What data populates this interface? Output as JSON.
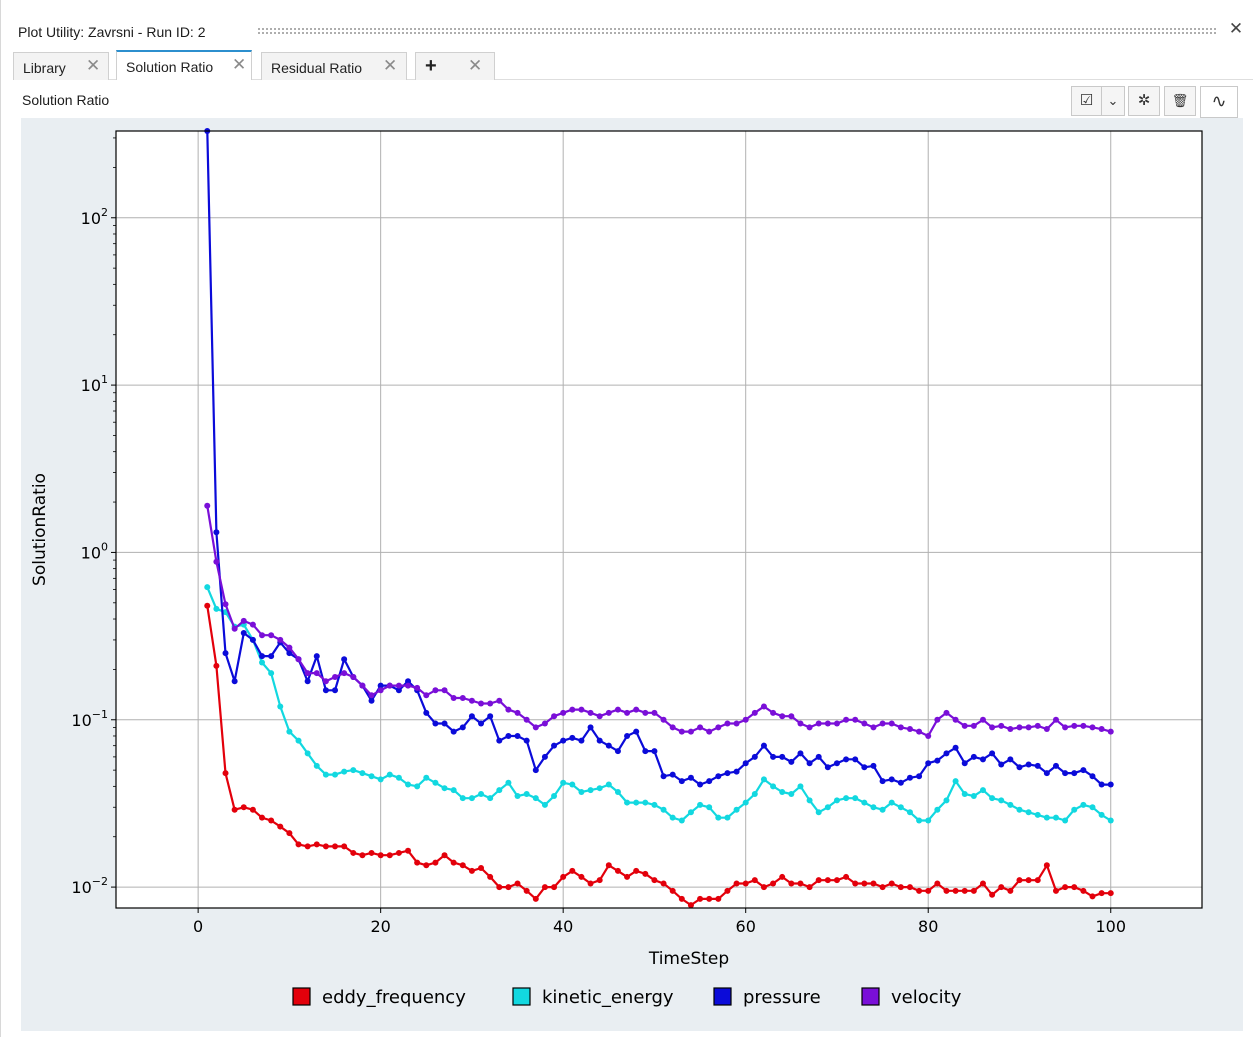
{
  "window": {
    "title": "Plot Utility: Zavrsni - Run ID: 2",
    "close_glyph": "✕"
  },
  "tabs": [
    {
      "label": "Library",
      "active": false,
      "close_glyph": "✕"
    },
    {
      "label": "Solution Ratio",
      "active": true,
      "close_glyph": "✕"
    },
    {
      "label": "Residual Ratio",
      "active": false,
      "close_glyph": "✕"
    },
    {
      "label": "+",
      "active": false,
      "close_glyph": "✕"
    }
  ],
  "panel": {
    "title": "Solution Ratio"
  },
  "toolbar": {
    "buttons": [
      {
        "icon": "checkbox-dropdown-icon",
        "glyph": "☑"
      },
      {
        "icon": "chevron-down-icon",
        "glyph": "⌄"
      },
      {
        "icon": "gear-icon",
        "glyph": "✲"
      },
      {
        "icon": "trash-icon",
        "glyph": "🗑"
      },
      {
        "icon": "curve-icon",
        "glyph": "∿"
      }
    ]
  },
  "colors": {
    "eddy_frequency": "#e3000b",
    "kinetic_energy": "#12d8e0",
    "pressure": "#0b0bd9",
    "velocity": "#7a0fd8",
    "plot_bg": "#e9eef2",
    "tab_accent": "#2c8fce"
  },
  "chart_data": {
    "type": "line",
    "title": "",
    "xlabel": "TimeStep",
    "ylabel": "SolutionRatio",
    "xlim": [
      -9,
      110
    ],
    "ylim": [
      0.0075,
      330
    ],
    "yscale": "log",
    "grid": true,
    "legend_position": "bottom",
    "xticks": [
      0,
      20,
      40,
      60,
      80,
      100
    ],
    "xtick_labels": [
      "0",
      "20",
      "40",
      "60",
      "80",
      "100"
    ],
    "yticks": [
      0.01,
      0.1,
      1,
      10,
      100
    ],
    "ytick_labels": [
      {
        "base": "10",
        "exp": "−2"
      },
      {
        "base": "10",
        "exp": "−1"
      },
      {
        "base": "10",
        "exp": "0"
      },
      {
        "base": "10",
        "exp": "1"
      },
      {
        "base": "10",
        "exp": "2"
      }
    ],
    "x": [
      1,
      2,
      3,
      4,
      5,
      6,
      7,
      8,
      9,
      10,
      11,
      12,
      13,
      14,
      15,
      16,
      17,
      18,
      19,
      20,
      21,
      22,
      23,
      24,
      25,
      26,
      27,
      28,
      29,
      30,
      31,
      32,
      33,
      34,
      35,
      36,
      37,
      38,
      39,
      40,
      41,
      42,
      43,
      44,
      45,
      46,
      47,
      48,
      49,
      50,
      51,
      52,
      53,
      54,
      55,
      56,
      57,
      58,
      59,
      60,
      61,
      62,
      63,
      64,
      65,
      66,
      67,
      68,
      69,
      70,
      71,
      72,
      73,
      74,
      75,
      76,
      77,
      78,
      79,
      80,
      81,
      82,
      83,
      84,
      85,
      86,
      87,
      88,
      89,
      90,
      91,
      92,
      93,
      94,
      95,
      96,
      97,
      98,
      99,
      100
    ],
    "series": [
      {
        "name": "eddy_frequency",
        "color": "#e3000b",
        "values": [
          0.48,
          0.21,
          0.048,
          0.029,
          0.03,
          0.029,
          0.026,
          0.025,
          0.023,
          0.021,
          0.018,
          0.0175,
          0.018,
          0.0175,
          0.0175,
          0.0175,
          0.016,
          0.0155,
          0.016,
          0.0155,
          0.0155,
          0.016,
          0.0165,
          0.014,
          0.0135,
          0.014,
          0.0155,
          0.014,
          0.0135,
          0.0125,
          0.013,
          0.0115,
          0.01,
          0.01,
          0.0105,
          0.0095,
          0.0085,
          0.01,
          0.01,
          0.0115,
          0.0125,
          0.0115,
          0.0105,
          0.011,
          0.0135,
          0.0125,
          0.0115,
          0.0125,
          0.012,
          0.011,
          0.0105,
          0.0095,
          0.0085,
          0.0078,
          0.0085,
          0.0085,
          0.0085,
          0.0095,
          0.0105,
          0.0105,
          0.011,
          0.01,
          0.0105,
          0.0115,
          0.0105,
          0.0105,
          0.01,
          0.011,
          0.011,
          0.011,
          0.0115,
          0.0105,
          0.0105,
          0.0105,
          0.01,
          0.0105,
          0.01,
          0.01,
          0.0095,
          0.0095,
          0.0105,
          0.0095,
          0.0095,
          0.0095,
          0.0095,
          0.0105,
          0.009,
          0.01,
          0.0095,
          0.011,
          0.011,
          0.011,
          0.0135,
          0.0095,
          0.01,
          0.01,
          0.0095,
          0.0088,
          0.0092,
          0.0092
        ]
      },
      {
        "name": "kinetic_energy",
        "color": "#12d8e0",
        "values": [
          0.62,
          0.46,
          0.44,
          0.36,
          0.37,
          0.3,
          0.22,
          0.19,
          0.12,
          0.085,
          0.075,
          0.063,
          0.053,
          0.047,
          0.047,
          0.049,
          0.05,
          0.048,
          0.046,
          0.044,
          0.047,
          0.045,
          0.041,
          0.04,
          0.045,
          0.042,
          0.039,
          0.038,
          0.034,
          0.034,
          0.036,
          0.034,
          0.038,
          0.042,
          0.035,
          0.036,
          0.034,
          0.031,
          0.035,
          0.042,
          0.041,
          0.037,
          0.038,
          0.039,
          0.041,
          0.037,
          0.032,
          0.032,
          0.032,
          0.031,
          0.029,
          0.026,
          0.025,
          0.028,
          0.031,
          0.03,
          0.026,
          0.026,
          0.029,
          0.032,
          0.036,
          0.044,
          0.04,
          0.037,
          0.036,
          0.04,
          0.033,
          0.028,
          0.03,
          0.033,
          0.034,
          0.034,
          0.032,
          0.03,
          0.029,
          0.032,
          0.03,
          0.028,
          0.025,
          0.025,
          0.029,
          0.033,
          0.043,
          0.036,
          0.035,
          0.038,
          0.034,
          0.033,
          0.031,
          0.029,
          0.028,
          0.027,
          0.026,
          0.026,
          0.025,
          0.029,
          0.031,
          0.03,
          0.027,
          0.025
        ]
      },
      {
        "name": "pressure",
        "color": "#0b0bd9",
        "values": [
          330,
          1.32,
          0.25,
          0.17,
          0.33,
          0.3,
          0.24,
          0.24,
          0.29,
          0.25,
          0.23,
          0.17,
          0.24,
          0.15,
          0.15,
          0.23,
          0.18,
          0.16,
          0.13,
          0.16,
          0.16,
          0.15,
          0.17,
          0.15,
          0.11,
          0.095,
          0.095,
          0.085,
          0.09,
          0.105,
          0.095,
          0.105,
          0.075,
          0.08,
          0.08,
          0.075,
          0.05,
          0.06,
          0.07,
          0.075,
          0.078,
          0.075,
          0.09,
          0.075,
          0.07,
          0.065,
          0.08,
          0.085,
          0.065,
          0.065,
          0.046,
          0.047,
          0.043,
          0.045,
          0.041,
          0.043,
          0.046,
          0.048,
          0.049,
          0.055,
          0.06,
          0.07,
          0.06,
          0.06,
          0.056,
          0.063,
          0.055,
          0.06,
          0.052,
          0.055,
          0.058,
          0.058,
          0.052,
          0.053,
          0.043,
          0.044,
          0.042,
          0.045,
          0.046,
          0.055,
          0.057,
          0.063,
          0.068,
          0.055,
          0.06,
          0.058,
          0.063,
          0.054,
          0.058,
          0.052,
          0.054,
          0.053,
          0.048,
          0.053,
          0.048,
          0.048,
          0.05,
          0.046,
          0.041,
          0.041
        ]
      },
      {
        "name": "velocity",
        "color": "#7a0fd8",
        "values": [
          1.9,
          0.88,
          0.49,
          0.35,
          0.39,
          0.37,
          0.32,
          0.32,
          0.3,
          0.27,
          0.23,
          0.19,
          0.19,
          0.17,
          0.18,
          0.19,
          0.18,
          0.16,
          0.14,
          0.15,
          0.16,
          0.16,
          0.16,
          0.155,
          0.14,
          0.15,
          0.15,
          0.135,
          0.135,
          0.13,
          0.125,
          0.125,
          0.13,
          0.115,
          0.11,
          0.1,
          0.09,
          0.095,
          0.105,
          0.11,
          0.115,
          0.115,
          0.11,
          0.105,
          0.11,
          0.115,
          0.11,
          0.115,
          0.11,
          0.11,
          0.1,
          0.09,
          0.085,
          0.085,
          0.09,
          0.085,
          0.09,
          0.095,
          0.095,
          0.1,
          0.11,
          0.12,
          0.11,
          0.105,
          0.105,
          0.095,
          0.09,
          0.095,
          0.095,
          0.095,
          0.1,
          0.1,
          0.095,
          0.09,
          0.095,
          0.095,
          0.09,
          0.088,
          0.085,
          0.08,
          0.1,
          0.11,
          0.1,
          0.092,
          0.092,
          0.1,
          0.09,
          0.092,
          0.088,
          0.09,
          0.09,
          0.092,
          0.088,
          0.1,
          0.09,
          0.092,
          0.092,
          0.09,
          0.088,
          0.085
        ]
      }
    ],
    "legend": [
      "eddy_frequency",
      "kinetic_energy",
      "pressure",
      "velocity"
    ]
  }
}
